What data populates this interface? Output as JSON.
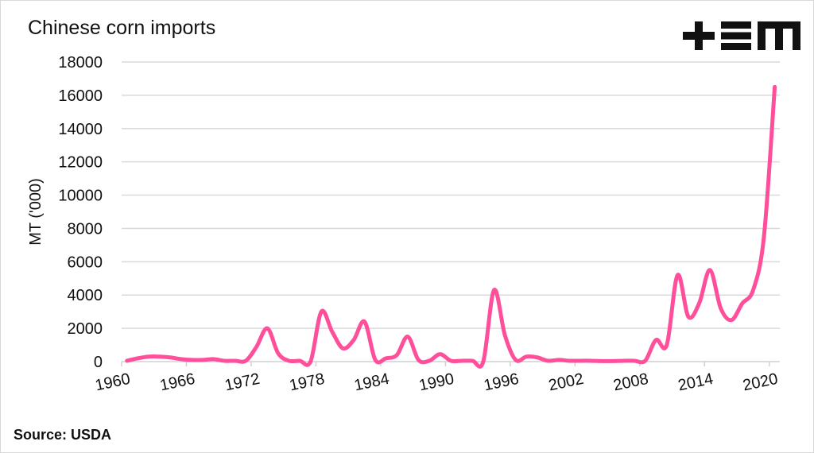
{
  "chart_data": {
    "type": "line",
    "title": "Chinese corn imports",
    "xlabel": "",
    "ylabel": "MT ('000)",
    "ylim": [
      0,
      18000
    ],
    "yticks": [
      0,
      2000,
      4000,
      6000,
      8000,
      10000,
      12000,
      14000,
      16000,
      18000
    ],
    "xtick_labels": [
      "1960",
      "1966",
      "1972",
      "1978",
      "1984",
      "1990",
      "1996",
      "2002",
      "2008",
      "2014",
      "2020"
    ],
    "grid": true,
    "legend": "none",
    "series": [
      {
        "color": "#ff4f9a",
        "x": [
          1960,
          1961,
          1962,
          1963,
          1964,
          1965,
          1966,
          1967,
          1968,
          1969,
          1970,
          1971,
          1972,
          1973,
          1974,
          1975,
          1976,
          1977,
          1978,
          1979,
          1980,
          1981,
          1982,
          1983,
          1984,
          1985,
          1986,
          1987,
          1988,
          1989,
          1990,
          1991,
          1992,
          1993,
          1994,
          1995,
          1996,
          1997,
          1998,
          1999,
          2000,
          2001,
          2002,
          2003,
          2004,
          2005,
          2006,
          2007,
          2008,
          2009,
          2010,
          2011,
          2012,
          2013,
          2014,
          2015,
          2016,
          2017,
          2018,
          2019,
          2020
        ],
        "values": [
          50,
          200,
          300,
          300,
          250,
          150,
          100,
          100,
          150,
          50,
          50,
          50,
          900,
          2000,
          500,
          50,
          50,
          0,
          3000,
          1800,
          800,
          1300,
          2400,
          100,
          200,
          400,
          1500,
          100,
          50,
          450,
          50,
          50,
          50,
          0,
          4300,
          1600,
          100,
          300,
          250,
          50,
          100,
          50,
          50,
          50,
          30,
          30,
          50,
          50,
          50,
          1300,
          1000,
          5200,
          2700,
          3500,
          5500,
          3200,
          2500,
          3500,
          4300,
          7500,
          16500
        ]
      }
    ]
  },
  "source": "Source: USDA",
  "logo_text": "+EM"
}
